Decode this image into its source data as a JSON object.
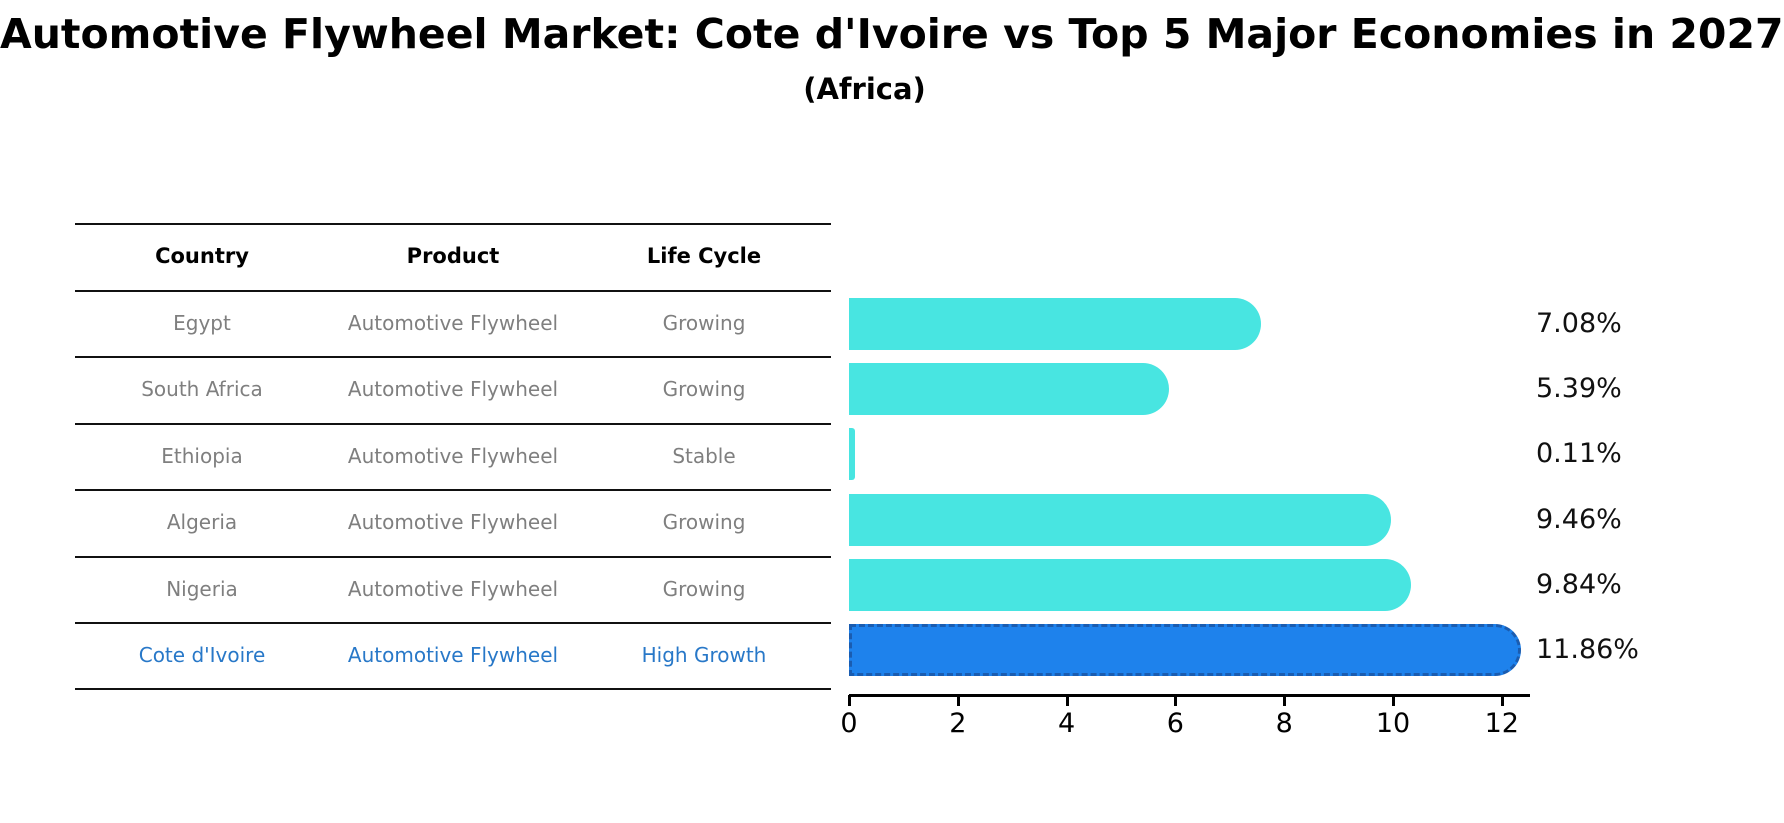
{
  "header": {
    "title": "Automotive Flywheel Market: Cote d'Ivoire vs Top 5 Major Economies in 2027",
    "subtitle": "(Africa)"
  },
  "table": {
    "columns": [
      "Country",
      "Product",
      "Life Cycle"
    ],
    "rows": [
      {
        "country": "Egypt",
        "product": "Automotive Flywheel",
        "life_cycle": "Growing",
        "highlight": false
      },
      {
        "country": "South Africa",
        "product": "Automotive Flywheel",
        "life_cycle": "Growing",
        "highlight": false
      },
      {
        "country": "Ethiopia",
        "product": "Automotive Flywheel",
        "life_cycle": "Stable",
        "highlight": false
      },
      {
        "country": "Algeria",
        "product": "Automotive Flywheel",
        "life_cycle": "Growing",
        "highlight": false
      },
      {
        "country": "Nigeria",
        "product": "Automotive Flywheel",
        "life_cycle": "Growing",
        "highlight": false
      },
      {
        "country": "Cote d'Ivoire",
        "product": "Automotive Flywheel",
        "life_cycle": "High Growth",
        "highlight": true
      }
    ]
  },
  "chart_data": {
    "type": "bar",
    "orientation": "horizontal",
    "title": "Automotive Flywheel Market: Cote d'Ivoire vs Top 5 Major Economies in 2027 (Africa)",
    "categories": [
      "Egypt",
      "South Africa",
      "Ethiopia",
      "Algeria",
      "Nigeria",
      "Cote d'Ivoire"
    ],
    "values": [
      7.08,
      5.39,
      0.11,
      9.46,
      9.84,
      11.86
    ],
    "value_labels": [
      "7.08%",
      "5.39%",
      "0.11%",
      "9.46%",
      "9.84%",
      "11.86%"
    ],
    "x_ticks": [
      "0",
      "2",
      "4",
      "6",
      "8",
      "10",
      "12"
    ],
    "xlim": [
      0,
      12.5
    ],
    "xlabel": "",
    "ylabel": "",
    "grid": false,
    "legend": false,
    "highlight_index": 5,
    "bar_color": "#48E5E1",
    "highlight_color": "#1E82EC",
    "highlight_border_color": "#1A5CB0",
    "highlight_text_color": "#2878C8",
    "text_color_muted": "#7F7F7F",
    "axis_color": "#000000"
  }
}
